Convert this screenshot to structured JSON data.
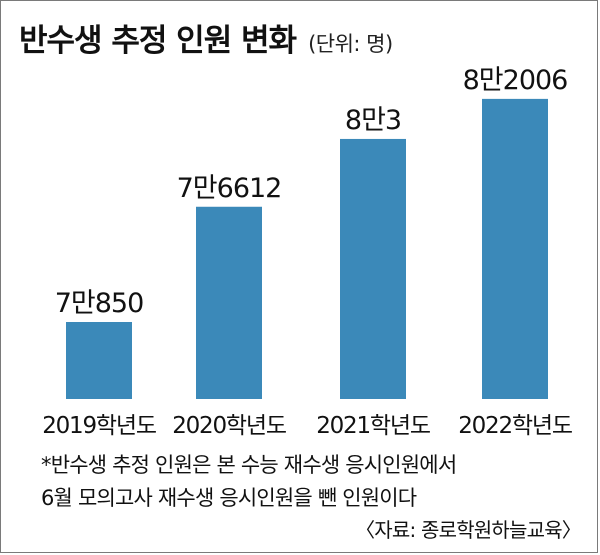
{
  "title": "반수생 추정 인원 변화",
  "unit": "(단위: 명)",
  "colors": {
    "bar": "#3b89b9",
    "text": "#111111"
  },
  "chart_data": {
    "type": "bar",
    "title": "반수생 추정 인원 변화",
    "xlabel": "",
    "ylabel": "",
    "ylim": [
      0,
      82006
    ],
    "grid": false,
    "categories": [
      "2019학년도",
      "2020학년도",
      "2021학년도",
      "2022학년도"
    ],
    "values": [
      70850,
      76612,
      80003,
      82006
    ],
    "value_labels": [
      "7만850",
      "7만6612",
      "8만3",
      "8만2006"
    ]
  },
  "footnote": {
    "line1": "*반수생 추정 인원은 본 수능 재수생 응시인원에서",
    "line2": "6월 모의고사 재수생 응시인원을 뺀 인원이다"
  },
  "source": "〈자료: 종로학원하늘교육〉"
}
